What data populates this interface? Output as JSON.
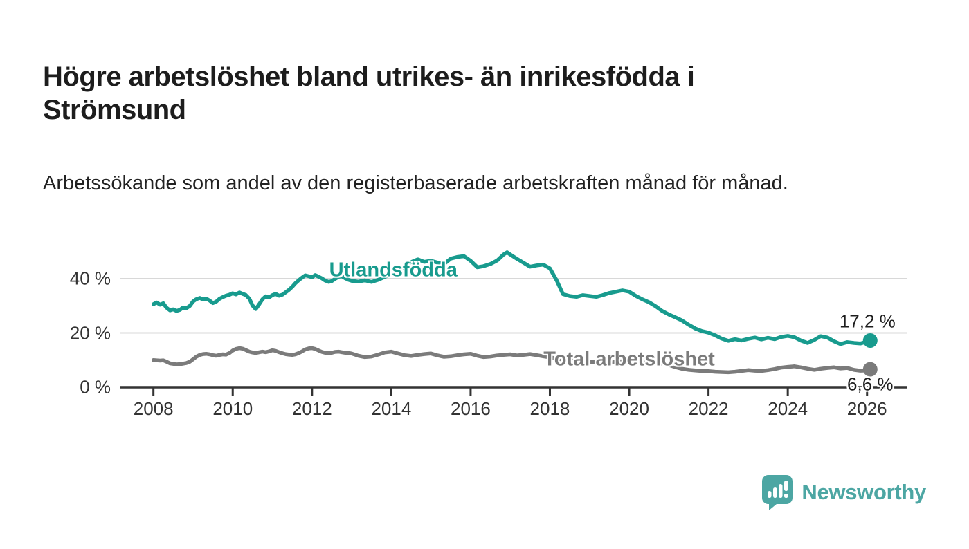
{
  "title": "Högre arbetslöshet bland utrikes- än inrikesfödda i Strömsund",
  "subtitle": "Arbetssökande som andel av den registerbaserade arbetskraften månad för månad.",
  "branding": {
    "name": "Newsworthy",
    "icon": "newsworthy-speech-bubble-bar-chart-icon",
    "color": "#4ca6a3"
  },
  "colors": {
    "foreign_born_line": "#189b8e",
    "total_line": "#7b7b7b",
    "gridline": "#d8d8d8",
    "axis": "#333333",
    "text_dark": "#1d1d1d"
  },
  "chart_data": {
    "type": "line",
    "title": "Högre arbetslöshet bland utrikes- än inrikesfödda i Strömsund",
    "subtitle": "Arbetssökande som andel av den registerbaserade arbetskraften månad för månad.",
    "xlabel": "",
    "ylabel": "",
    "grid": "horizontal",
    "xlim": [
      2007.15,
      2027.0
    ],
    "ylim": [
      0,
      52
    ],
    "x_ticks": [
      {
        "value": 2008,
        "label": "2008"
      },
      {
        "value": 2010,
        "label": "2010"
      },
      {
        "value": 2012,
        "label": "2012"
      },
      {
        "value": 2014,
        "label": "2014"
      },
      {
        "value": 2016,
        "label": "2016"
      },
      {
        "value": 2018,
        "label": "2018"
      },
      {
        "value": 2020,
        "label": "2020"
      },
      {
        "value": 2022,
        "label": "2022"
      },
      {
        "value": 2024,
        "label": "2024"
      },
      {
        "value": 2026,
        "label": "2026"
      }
    ],
    "y_ticks": [
      {
        "value": 0,
        "label": "0 %"
      },
      {
        "value": 20,
        "label": "20 %"
      },
      {
        "value": 40,
        "label": "40 %"
      }
    ],
    "legend_position": "inline-labels",
    "series": [
      {
        "name": "Total arbetslöshet",
        "color": "#7b7b7b",
        "end_value": 6.6,
        "end_label": "6,6 %",
        "end_label_offset": {
          "dx": 0,
          "dy": 22
        },
        "label_x": 2020.0,
        "label_y": 10.3,
        "points": [
          [
            2008.0,
            10.0
          ],
          [
            2008.08,
            9.9
          ],
          [
            2008.17,
            9.8
          ],
          [
            2008.25,
            9.9
          ],
          [
            2008.33,
            9.4
          ],
          [
            2008.42,
            8.8
          ],
          [
            2008.5,
            8.6
          ],
          [
            2008.58,
            8.4
          ],
          [
            2008.67,
            8.5
          ],
          [
            2008.75,
            8.7
          ],
          [
            2008.83,
            8.9
          ],
          [
            2008.92,
            9.4
          ],
          [
            2009.0,
            10.3
          ],
          [
            2009.08,
            11.2
          ],
          [
            2009.17,
            11.9
          ],
          [
            2009.25,
            12.2
          ],
          [
            2009.33,
            12.3
          ],
          [
            2009.42,
            12.1
          ],
          [
            2009.5,
            11.8
          ],
          [
            2009.58,
            11.6
          ],
          [
            2009.67,
            11.9
          ],
          [
            2009.75,
            12.1
          ],
          [
            2009.83,
            12.0
          ],
          [
            2009.92,
            12.6
          ],
          [
            2010.0,
            13.5
          ],
          [
            2010.08,
            14.1
          ],
          [
            2010.17,
            14.4
          ],
          [
            2010.25,
            14.2
          ],
          [
            2010.33,
            13.7
          ],
          [
            2010.42,
            13.1
          ],
          [
            2010.5,
            12.8
          ],
          [
            2010.58,
            12.6
          ],
          [
            2010.67,
            12.9
          ],
          [
            2010.75,
            13.1
          ],
          [
            2010.83,
            12.9
          ],
          [
            2010.92,
            13.2
          ],
          [
            2011.0,
            13.6
          ],
          [
            2011.08,
            13.4
          ],
          [
            2011.17,
            12.9
          ],
          [
            2011.25,
            12.5
          ],
          [
            2011.33,
            12.2
          ],
          [
            2011.42,
            12.0
          ],
          [
            2011.5,
            11.9
          ],
          [
            2011.58,
            12.1
          ],
          [
            2011.67,
            12.6
          ],
          [
            2011.75,
            13.2
          ],
          [
            2011.83,
            13.9
          ],
          [
            2011.92,
            14.3
          ],
          [
            2012.0,
            14.4
          ],
          [
            2012.08,
            14.1
          ],
          [
            2012.17,
            13.5
          ],
          [
            2012.25,
            13.0
          ],
          [
            2012.33,
            12.7
          ],
          [
            2012.42,
            12.5
          ],
          [
            2012.5,
            12.7
          ],
          [
            2012.58,
            13.0
          ],
          [
            2012.67,
            13.1
          ],
          [
            2012.75,
            12.9
          ],
          [
            2012.83,
            12.7
          ],
          [
            2012.92,
            12.6
          ],
          [
            2013.0,
            12.4
          ],
          [
            2013.17,
            11.6
          ],
          [
            2013.33,
            11.1
          ],
          [
            2013.5,
            11.3
          ],
          [
            2013.67,
            12.0
          ],
          [
            2013.83,
            12.8
          ],
          [
            2014.0,
            13.1
          ],
          [
            2014.17,
            12.4
          ],
          [
            2014.33,
            11.8
          ],
          [
            2014.5,
            11.5
          ],
          [
            2014.67,
            11.9
          ],
          [
            2014.83,
            12.2
          ],
          [
            2015.0,
            12.4
          ],
          [
            2015.17,
            11.7
          ],
          [
            2015.33,
            11.2
          ],
          [
            2015.5,
            11.4
          ],
          [
            2015.67,
            11.8
          ],
          [
            2015.83,
            12.1
          ],
          [
            2016.0,
            12.3
          ],
          [
            2016.17,
            11.6
          ],
          [
            2016.33,
            11.1
          ],
          [
            2016.5,
            11.3
          ],
          [
            2016.67,
            11.7
          ],
          [
            2016.83,
            11.9
          ],
          [
            2017.0,
            12.1
          ],
          [
            2017.17,
            11.7
          ],
          [
            2017.33,
            11.9
          ],
          [
            2017.5,
            12.2
          ],
          [
            2017.67,
            11.8
          ],
          [
            2017.83,
            11.4
          ],
          [
            2018.0,
            11.0
          ],
          [
            2018.33,
            10.2
          ],
          [
            2018.67,
            9.6
          ],
          [
            2019.0,
            9.3
          ],
          [
            2019.33,
            9.1
          ],
          [
            2019.67,
            9.4
          ],
          [
            2020.0,
            9.8
          ],
          [
            2020.33,
            10.1
          ],
          [
            2020.67,
            9.2
          ],
          [
            2021.0,
            8.2
          ],
          [
            2021.17,
            7.4
          ],
          [
            2021.33,
            6.8
          ],
          [
            2021.5,
            6.4
          ],
          [
            2021.67,
            6.2
          ],
          [
            2021.83,
            6.0
          ],
          [
            2022.0,
            5.9
          ],
          [
            2022.17,
            5.7
          ],
          [
            2022.33,
            5.6
          ],
          [
            2022.5,
            5.5
          ],
          [
            2022.67,
            5.7
          ],
          [
            2022.83,
            6.0
          ],
          [
            2023.0,
            6.3
          ],
          [
            2023.17,
            6.1
          ],
          [
            2023.33,
            6.0
          ],
          [
            2023.5,
            6.3
          ],
          [
            2023.67,
            6.7
          ],
          [
            2023.83,
            7.2
          ],
          [
            2024.0,
            7.5
          ],
          [
            2024.17,
            7.7
          ],
          [
            2024.33,
            7.3
          ],
          [
            2024.5,
            6.8
          ],
          [
            2024.67,
            6.4
          ],
          [
            2024.83,
            6.8
          ],
          [
            2025.0,
            7.1
          ],
          [
            2025.17,
            7.3
          ],
          [
            2025.33,
            6.9
          ],
          [
            2025.5,
            7.1
          ],
          [
            2025.67,
            6.4
          ],
          [
            2025.83,
            6.1
          ],
          [
            2026.0,
            6.2
          ],
          [
            2026.08,
            6.6
          ]
        ]
      },
      {
        "name": "Utlandsfödda",
        "color": "#189b8e",
        "end_value": 17.2,
        "end_label": "17,2 %",
        "end_label_offset": {
          "dx": -4,
          "dy": -27
        },
        "label_x": 2014.05,
        "label_y": 43.1,
        "points": [
          [
            2008.0,
            30.6
          ],
          [
            2008.08,
            31.2
          ],
          [
            2008.17,
            30.4
          ],
          [
            2008.25,
            30.9
          ],
          [
            2008.33,
            29.3
          ],
          [
            2008.42,
            28.3
          ],
          [
            2008.5,
            28.7
          ],
          [
            2008.58,
            28.1
          ],
          [
            2008.67,
            28.5
          ],
          [
            2008.75,
            29.4
          ],
          [
            2008.83,
            29.1
          ],
          [
            2008.92,
            30.0
          ],
          [
            2009.0,
            31.6
          ],
          [
            2009.08,
            32.4
          ],
          [
            2009.17,
            32.9
          ],
          [
            2009.25,
            32.3
          ],
          [
            2009.33,
            32.7
          ],
          [
            2009.42,
            31.9
          ],
          [
            2009.5,
            31.0
          ],
          [
            2009.58,
            31.5
          ],
          [
            2009.67,
            32.6
          ],
          [
            2009.75,
            33.2
          ],
          [
            2009.83,
            33.7
          ],
          [
            2009.92,
            34.1
          ],
          [
            2010.0,
            34.6
          ],
          [
            2010.08,
            34.2
          ],
          [
            2010.17,
            34.9
          ],
          [
            2010.25,
            34.4
          ],
          [
            2010.33,
            34.0
          ],
          [
            2010.42,
            32.6
          ],
          [
            2010.5,
            30.1
          ],
          [
            2010.58,
            28.8
          ],
          [
            2010.67,
            30.6
          ],
          [
            2010.75,
            32.4
          ],
          [
            2010.83,
            33.5
          ],
          [
            2010.92,
            33.1
          ],
          [
            2011.0,
            33.9
          ],
          [
            2011.08,
            34.4
          ],
          [
            2011.17,
            33.7
          ],
          [
            2011.25,
            34.1
          ],
          [
            2011.33,
            34.9
          ],
          [
            2011.42,
            35.9
          ],
          [
            2011.5,
            37.0
          ],
          [
            2011.58,
            38.3
          ],
          [
            2011.67,
            39.5
          ],
          [
            2011.75,
            40.4
          ],
          [
            2011.83,
            41.2
          ],
          [
            2011.92,
            40.9
          ],
          [
            2012.0,
            40.5
          ],
          [
            2012.08,
            41.3
          ],
          [
            2012.17,
            40.7
          ],
          [
            2012.25,
            40.1
          ],
          [
            2012.33,
            39.3
          ],
          [
            2012.42,
            38.8
          ],
          [
            2012.5,
            39.1
          ],
          [
            2012.58,
            39.9
          ],
          [
            2012.67,
            40.7
          ],
          [
            2012.75,
            40.9
          ],
          [
            2012.83,
            40.2
          ],
          [
            2012.92,
            39.6
          ],
          [
            2013.0,
            39.2
          ],
          [
            2013.17,
            38.9
          ],
          [
            2013.33,
            39.4
          ],
          [
            2013.5,
            38.8
          ],
          [
            2013.67,
            39.6
          ],
          [
            2013.83,
            40.6
          ],
          [
            2014.0,
            41.6
          ],
          [
            2014.17,
            43.0
          ],
          [
            2014.33,
            44.4
          ],
          [
            2014.5,
            46.1
          ],
          [
            2014.67,
            47.1
          ],
          [
            2014.83,
            46.2
          ],
          [
            2015.0,
            46.6
          ],
          [
            2015.17,
            45.9
          ],
          [
            2015.33,
            45.4
          ],
          [
            2015.5,
            47.4
          ],
          [
            2015.67,
            48.0
          ],
          [
            2015.83,
            48.3
          ],
          [
            2016.0,
            46.6
          ],
          [
            2016.17,
            44.2
          ],
          [
            2016.33,
            44.6
          ],
          [
            2016.5,
            45.4
          ],
          [
            2016.67,
            46.7
          ],
          [
            2016.83,
            48.9
          ],
          [
            2016.92,
            49.7
          ],
          [
            2017.0,
            48.9
          ],
          [
            2017.17,
            47.3
          ],
          [
            2017.33,
            45.9
          ],
          [
            2017.5,
            44.4
          ],
          [
            2017.67,
            44.9
          ],
          [
            2017.83,
            45.2
          ],
          [
            2018.0,
            43.8
          ],
          [
            2018.17,
            39.4
          ],
          [
            2018.33,
            34.3
          ],
          [
            2018.5,
            33.6
          ],
          [
            2018.67,
            33.3
          ],
          [
            2018.83,
            33.9
          ],
          [
            2019.0,
            33.6
          ],
          [
            2019.17,
            33.3
          ],
          [
            2019.33,
            33.9
          ],
          [
            2019.5,
            34.7
          ],
          [
            2019.67,
            35.2
          ],
          [
            2019.83,
            35.7
          ],
          [
            2020.0,
            35.2
          ],
          [
            2020.17,
            33.6
          ],
          [
            2020.33,
            32.4
          ],
          [
            2020.5,
            31.3
          ],
          [
            2020.67,
            29.8
          ],
          [
            2020.83,
            28.1
          ],
          [
            2021.0,
            26.8
          ],
          [
            2021.17,
            25.7
          ],
          [
            2021.33,
            24.6
          ],
          [
            2021.5,
            23.0
          ],
          [
            2021.67,
            21.6
          ],
          [
            2021.83,
            20.7
          ],
          [
            2022.0,
            20.1
          ],
          [
            2022.17,
            19.1
          ],
          [
            2022.33,
            17.9
          ],
          [
            2022.5,
            17.1
          ],
          [
            2022.67,
            17.7
          ],
          [
            2022.83,
            17.2
          ],
          [
            2023.0,
            17.8
          ],
          [
            2023.17,
            18.3
          ],
          [
            2023.33,
            17.6
          ],
          [
            2023.5,
            18.2
          ],
          [
            2023.67,
            17.7
          ],
          [
            2023.83,
            18.5
          ],
          [
            2024.0,
            18.9
          ],
          [
            2024.17,
            18.4
          ],
          [
            2024.33,
            17.2
          ],
          [
            2024.5,
            16.3
          ],
          [
            2024.67,
            17.4
          ],
          [
            2024.83,
            18.8
          ],
          [
            2025.0,
            18.3
          ],
          [
            2025.17,
            16.9
          ],
          [
            2025.33,
            15.9
          ],
          [
            2025.5,
            16.6
          ],
          [
            2025.67,
            16.3
          ],
          [
            2025.83,
            16.1
          ],
          [
            2026.0,
            16.8
          ],
          [
            2026.08,
            17.2
          ]
        ]
      }
    ]
  }
}
